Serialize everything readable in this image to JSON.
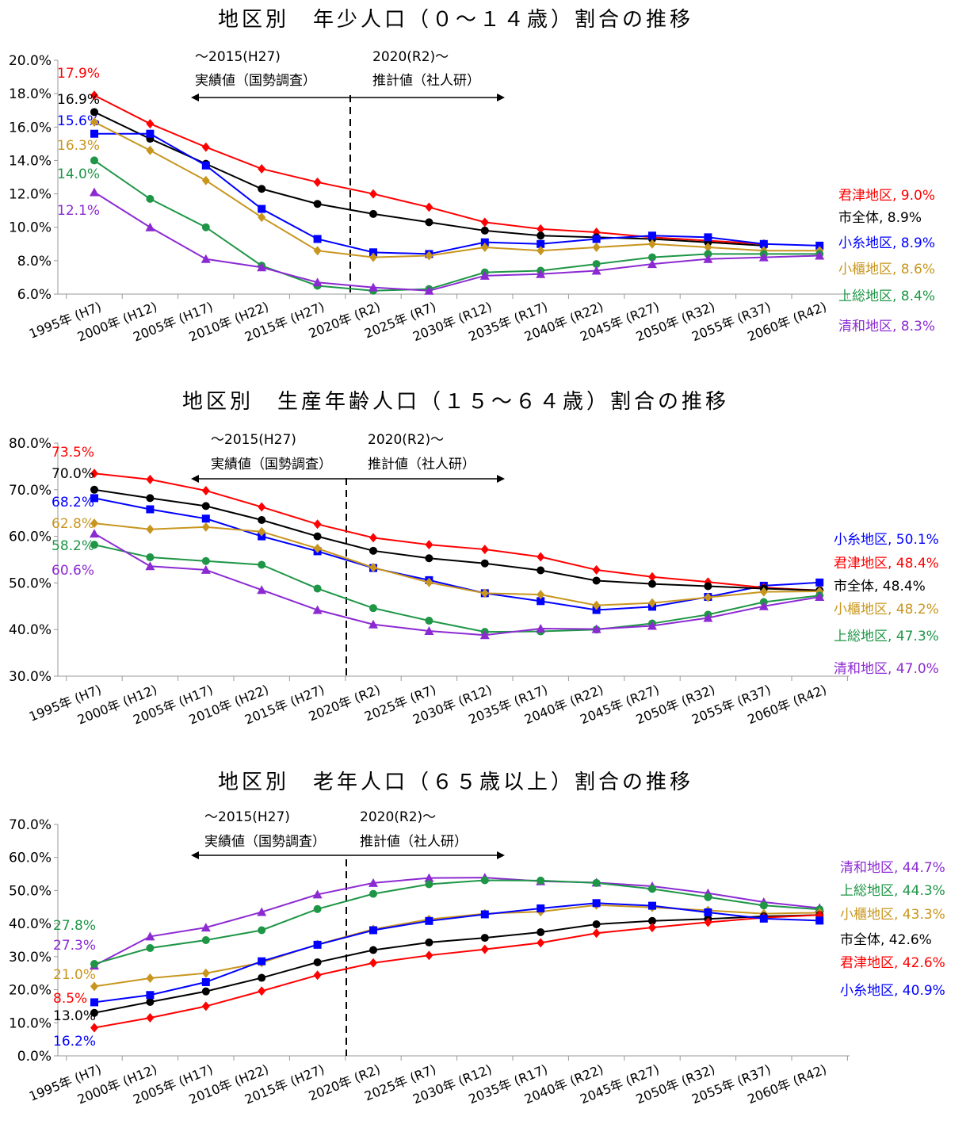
{
  "charts": [
    {
      "title": "地区別　年少人口（０～１４歳）割合の推移",
      "period_actual": "～2015(H27)",
      "label_actual": "実績値（国勢調査）",
      "period_projection": "2020(R2)～",
      "label_projection": "推計値（社人研）"
    },
    {
      "title": "地区別　生産年齢人口（１５～６４歳）割合の推移",
      "period_actual": "～2015(H27)",
      "label_actual": "実績値（国勢調査）",
      "period_projection": "2020(R2)～",
      "label_projection": "推計値（社人研）"
    },
    {
      "title": "地区別　老年人口（６５歳以上）割合の推移",
      "period_actual": "～2015(H27)",
      "label_actual": "実績値（国勢調査）",
      "period_projection": "2020(R2)～",
      "label_projection": "推計値（社人研）"
    }
  ],
  "series_colors": {
    "君津地区": "#ff0000",
    "市全体": "#000000",
    "小糸地区": "#0000ff",
    "小櫃地区": "#c8961e",
    "上総地区": "#1e9646",
    "清和地区": "#8c2ad2"
  },
  "chart_data": [
    {
      "type": "line",
      "title": "地区別　年少人口（０～１４歳）割合の推移",
      "categories": [
        "1995年 (H7)",
        "2000年 (H12)",
        "2005年 (H17)",
        "2010年 (H22)",
        "2015年 (H27)",
        "2020年 (R2)",
        "2025年 (R7)",
        "2030年 (R12)",
        "2035年 (R17)",
        "2040年 (R22)",
        "2045年 (R27)",
        "2050年 (R32)",
        "2055年 (R37)",
        "2060年 (R42)"
      ],
      "y_ticks": [
        "6.0%",
        "8.0%",
        "10.0%",
        "12.0%",
        "14.0%",
        "16.0%",
        "18.0%",
        "20.0%"
      ],
      "ylim": [
        6,
        20
      ],
      "divider_after": "2015年 (H27)",
      "series": [
        {
          "name": "君津地区",
          "values": [
            17.9,
            16.2,
            14.8,
            13.5,
            12.7,
            12.0,
            11.2,
            10.3,
            9.9,
            9.7,
            9.4,
            9.2,
            9.0,
            null
          ],
          "start_label": "17.9%",
          "end_label": "君津地区, 9.0%"
        },
        {
          "name": "市全体",
          "values": [
            16.9,
            15.3,
            13.8,
            12.3,
            11.4,
            10.8,
            10.3,
            9.8,
            9.5,
            9.4,
            9.3,
            9.1,
            8.9,
            null
          ],
          "start_label": "16.9%",
          "end_label": "市全体, 8.9%"
        },
        {
          "name": "小糸地区",
          "values": [
            15.6,
            15.6,
            13.7,
            11.1,
            9.3,
            8.5,
            8.4,
            9.1,
            9.0,
            9.3,
            9.5,
            9.4,
            9.0,
            8.9
          ],
          "start_label": "15.6%",
          "end_label": "小糸地区, 8.9%"
        },
        {
          "name": "小櫃地区",
          "values": [
            16.3,
            14.6,
            12.8,
            10.6,
            8.6,
            8.2,
            8.3,
            8.8,
            8.6,
            8.8,
            9.0,
            8.8,
            8.6,
            8.6
          ],
          "start_label": "16.3%",
          "end_label": "小櫃地区, 8.6%"
        },
        {
          "name": "上総地区",
          "values": [
            14.0,
            11.7,
            10.0,
            7.7,
            6.5,
            6.2,
            6.3,
            7.3,
            7.4,
            7.8,
            8.2,
            8.4,
            8.4,
            8.4
          ],
          "start_label": "14.0%",
          "end_label": "上総地区, 8.4%"
        },
        {
          "name": "清和地区",
          "values": [
            12.1,
            10.0,
            8.1,
            7.6,
            6.7,
            6.4,
            6.2,
            7.1,
            7.2,
            7.4,
            7.8,
            8.1,
            8.2,
            8.3
          ],
          "start_label": "12.1%",
          "end_label": "清和地区, 8.3%"
        }
      ]
    },
    {
      "type": "line",
      "title": "地区別　生産年齢人口（１５～６４歳）割合の推移",
      "categories": [
        "1995年 (H7)",
        "2000年 (H12)",
        "2005年 (H17)",
        "2010年 (H22)",
        "2015年 (H27)",
        "2020年 (R2)",
        "2025年 (R7)",
        "2030年 (R12)",
        "2035年 (R17)",
        "2040年 (R22)",
        "2045年 (R27)",
        "2050年 (R32)",
        "2055年 (R37)",
        "2060年 (R42)"
      ],
      "y_ticks": [
        "30.0%",
        "40.0%",
        "50.0%",
        "60.0%",
        "70.0%",
        "80.0%"
      ],
      "ylim": [
        30,
        80
      ],
      "divider_after": "2015年 (H27)",
      "series": [
        {
          "name": "小糸地区",
          "values": [
            68.2,
            65.8,
            63.8,
            60.0,
            56.8,
            53.2,
            50.6,
            47.8,
            46.1,
            44.2,
            44.9,
            47.0,
            49.4,
            50.1
          ],
          "start_label": "68.2%",
          "end_label": "小糸地区, 50.1%"
        },
        {
          "name": "君津地区",
          "values": [
            73.5,
            72.2,
            69.8,
            66.3,
            62.6,
            59.7,
            58.2,
            57.2,
            55.6,
            52.8,
            51.3,
            50.2,
            49.0,
            48.4
          ],
          "start_label": "73.5%",
          "end_label": "君津地区, 48.4%"
        },
        {
          "name": "市全体",
          "values": [
            70.0,
            68.2,
            66.5,
            63.5,
            60.0,
            56.9,
            55.3,
            54.2,
            52.7,
            50.5,
            49.8,
            49.3,
            48.8,
            48.4
          ],
          "start_label": "70.0%",
          "end_label": "市全体, 48.4%"
        },
        {
          "name": "小櫃地区",
          "values": [
            62.8,
            61.5,
            62.0,
            61.0,
            57.4,
            53.3,
            50.1,
            47.8,
            47.5,
            45.2,
            45.7,
            46.9,
            48.1,
            48.2
          ],
          "start_label": "62.8%",
          "end_label": "小櫃地区, 48.2%"
        },
        {
          "name": "上総地区",
          "values": [
            58.2,
            55.5,
            54.7,
            53.9,
            48.8,
            44.6,
            41.9,
            39.5,
            39.6,
            40.0,
            41.3,
            43.2,
            45.9,
            47.3
          ],
          "start_label": "58.2%",
          "end_label": "上総地区, 47.3%"
        },
        {
          "name": "清和地区",
          "values": [
            60.6,
            53.6,
            52.8,
            48.5,
            44.2,
            41.1,
            39.7,
            38.8,
            40.2,
            40.1,
            40.8,
            42.5,
            45.0,
            47.0
          ],
          "start_label": "60.6%",
          "end_label": "清和地区, 47.0%"
        }
      ]
    },
    {
      "type": "line",
      "title": "地区別　老年人口（６５歳以上）割合の推移",
      "categories": [
        "1995年 (H7)",
        "2000年 (H12)",
        "2005年 (H17)",
        "2010年 (H22)",
        "2015年 (H27)",
        "2020年 (R2)",
        "2025年 (R7)",
        "2030年 (R12)",
        "2035年 (R17)",
        "2040年 (R22)",
        "2045年 (R27)",
        "2050年 (R32)",
        "2055年 (R37)",
        "2060年 (R42)"
      ],
      "y_ticks": [
        "0.0%",
        "10.0%",
        "20.0%",
        "30.0%",
        "40.0%",
        "50.0%",
        "60.0%",
        "70.0%"
      ],
      "ylim": [
        0,
        70
      ],
      "divider_after": "2015年 (H27)",
      "series": [
        {
          "name": "清和地区",
          "values": [
            27.3,
            36.1,
            38.8,
            43.5,
            48.8,
            52.3,
            53.8,
            53.9,
            52.8,
            52.4,
            51.3,
            49.2,
            46.5,
            44.7
          ],
          "start_label": "27.3%",
          "end_label": "清和地区, 44.7%"
        },
        {
          "name": "上総地区",
          "values": [
            27.8,
            32.6,
            35.0,
            38.0,
            44.4,
            49.0,
            51.9,
            53.1,
            53.0,
            52.3,
            50.5,
            48.0,
            45.5,
            44.3
          ],
          "start_label": "27.8%",
          "end_label": "上総地区, 44.3%"
        },
        {
          "name": "小櫃地区",
          "values": [
            21.0,
            23.5,
            25.0,
            28.2,
            33.7,
            38.3,
            41.3,
            43.0,
            43.6,
            45.6,
            44.9,
            44.0,
            43.0,
            43.3
          ],
          "start_label": "21.0%",
          "end_label": "小櫃地区, 43.3%"
        },
        {
          "name": "市全体",
          "values": [
            13.0,
            16.3,
            19.5,
            23.6,
            28.3,
            32.0,
            34.3,
            35.7,
            37.4,
            39.8,
            40.8,
            41.4,
            42.2,
            42.6
          ],
          "start_label": "13.0%",
          "end_label": "市全体, 42.6%"
        },
        {
          "name": "君津地区",
          "values": [
            8.5,
            11.5,
            15.0,
            19.6,
            24.4,
            28.1,
            30.4,
            32.2,
            34.2,
            37.1,
            38.8,
            40.4,
            41.8,
            42.6
          ],
          "start_label": "8.5%",
          "end_label": "君津地区, 42.6%"
        },
        {
          "name": "小糸地区",
          "values": [
            16.2,
            18.4,
            22.3,
            28.6,
            33.6,
            38.0,
            40.8,
            42.8,
            44.6,
            46.2,
            45.4,
            43.4,
            41.5,
            40.9
          ],
          "start_label": "16.2%",
          "end_label": "小糸地区, 40.9%"
        }
      ]
    }
  ]
}
